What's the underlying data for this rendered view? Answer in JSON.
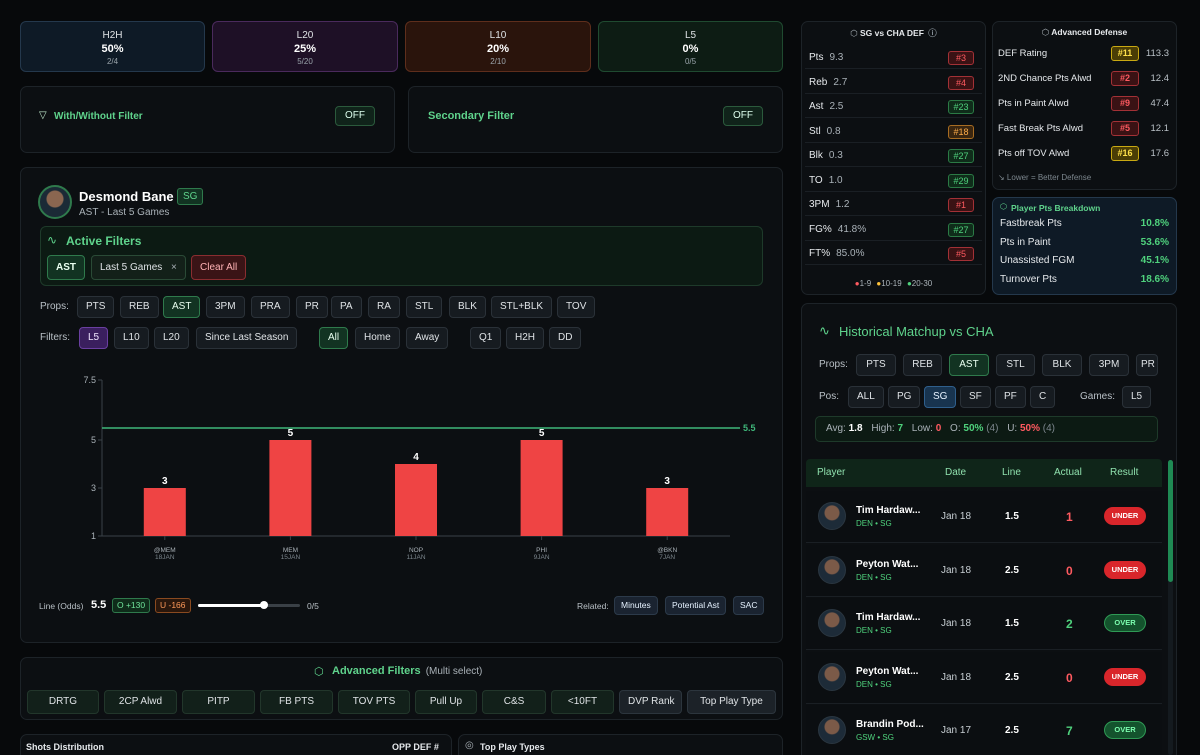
{
  "hit_cards": [
    {
      "title": "H2H",
      "pct": "50%",
      "frac": "2/4",
      "bg": "#0e1a26",
      "border": "#24384c"
    },
    {
      "title": "L20",
      "pct": "25%",
      "frac": "5/20",
      "bg": "#1e1026",
      "border": "#4a2a5c"
    },
    {
      "title": "L10",
      "pct": "20%",
      "frac": "2/10",
      "bg": "#2a140c",
      "border": "#5e2e1c"
    },
    {
      "title": "L5",
      "pct": "0%",
      "frac": "0/5",
      "bg": "#0d1c14",
      "border": "#1f4a30"
    }
  ],
  "filters_bar": {
    "with_without_label": "With/Without Filter",
    "with_without_state": "OFF",
    "secondary_label": "Secondary Filter",
    "secondary_state": "OFF"
  },
  "player": {
    "name": "Desmond Bane",
    "pos": "SG",
    "subtitle": "AST - Last 5 Games"
  },
  "active_filters": {
    "title": "Active Filters",
    "chips": [
      "AST",
      "Last 5 Games"
    ],
    "chip_close": "×",
    "clear": "Clear All"
  },
  "props": {
    "label": "Props:",
    "items": [
      "PTS",
      "REB",
      "AST",
      "3PM",
      "PRA",
      "PR",
      "PA",
      "RA",
      "STL",
      "BLK",
      "STL+BLK",
      "TOV"
    ]
  },
  "filters": {
    "label": "Filters:",
    "items": [
      "L5",
      "L10",
      "L20",
      "Since Last Season",
      "All",
      "Home",
      "Away",
      "Q1",
      "H2H",
      "DD"
    ]
  },
  "chart_data": {
    "type": "bar",
    "categories": [
      "@MEM",
      "MEM",
      "NOP",
      "PHI",
      "@BKN"
    ],
    "dates": [
      "18JAN",
      "15JAN",
      "11JAN",
      "9JAN",
      "7JAN"
    ],
    "values": [
      3,
      5,
      4,
      5,
      3
    ],
    "line": 5.5,
    "line_label": "5.5",
    "yticks": [
      "7.5",
      "5",
      "3",
      "1"
    ],
    "ytick_values": [
      7.5,
      5,
      3,
      1
    ],
    "ylim": [
      1,
      7.5
    ],
    "bar_color": "#ef4444",
    "line_color": "#3fb77a"
  },
  "line_controls": {
    "label": "Line (Odds)",
    "value": "5.5",
    "over": "O +130",
    "under": "U -166",
    "slider_fraction": 0.65,
    "count": "0/5",
    "related_label": "Related:",
    "related": [
      "Minutes",
      "Potential Ast",
      "SAC"
    ]
  },
  "advanced_filters": {
    "title": "Advanced Filters",
    "subtitle": "(Multi select)",
    "items": [
      "DRTG",
      "2CP Alwd",
      "PITP",
      "FB PTS",
      "TOV PTS",
      "Pull Up",
      "C&S",
      "<10FT",
      "DVP Rank",
      "Top Play Type"
    ]
  },
  "bottom": {
    "shots": "Shots Distribution",
    "opp_def": "OPP DEF #",
    "top_play": "Top Play Types"
  },
  "sg_def": {
    "title": "SG vs CHA DEF",
    "info_icon": "ⓘ",
    "rows": [
      {
        "k": "Pts",
        "v": "9.3",
        "rank": "#3",
        "c": "red"
      },
      {
        "k": "Reb",
        "v": "2.7",
        "rank": "#4",
        "c": "red"
      },
      {
        "k": "Ast",
        "v": "2.5",
        "rank": "#23",
        "c": "green"
      },
      {
        "k": "Stl",
        "v": "0.8",
        "rank": "#18",
        "c": "orange"
      },
      {
        "k": "Blk",
        "v": "0.3",
        "rank": "#27",
        "c": "green"
      },
      {
        "k": "TO",
        "v": "1.0",
        "rank": "#29",
        "c": "green"
      },
      {
        "k": "3PM",
        "v": "1.2",
        "rank": "#1",
        "c": "red"
      },
      {
        "k": "FG%",
        "v": "41.8%",
        "rank": "#27",
        "c": "green"
      },
      {
        "k": "FT%",
        "v": "85.0%",
        "rank": "#5",
        "c": "red"
      }
    ],
    "legend": [
      "1-9",
      "10-19",
      "20-30"
    ]
  },
  "adv_def": {
    "title": "Advanced Defense",
    "rows": [
      {
        "k": "DEF Rating",
        "rank": "#11",
        "v": "113.3",
        "c": "yellow"
      },
      {
        "k": "2ND Chance Pts Alwd",
        "rank": "#2",
        "v": "12.4",
        "c": "red"
      },
      {
        "k": "Pts in Paint Alwd",
        "rank": "#9",
        "v": "47.4",
        "c": "red"
      },
      {
        "k": "Fast Break Pts Alwd",
        "rank": "#5",
        "v": "12.1",
        "c": "red"
      },
      {
        "k": "Pts off TOV Alwd",
        "rank": "#16",
        "v": "17.6",
        "c": "yellow"
      }
    ],
    "note": "↘ Lower = Better Defense"
  },
  "pts_breakdown": {
    "title": "Player Pts Breakdown",
    "rows": [
      {
        "k": "Fastbreak Pts",
        "v": "10.8%"
      },
      {
        "k": "Pts in Paint",
        "v": "53.6%"
      },
      {
        "k": "Unassisted FGM",
        "v": "45.1%"
      },
      {
        "k": "Turnover Pts",
        "v": "18.6%"
      }
    ]
  },
  "historical": {
    "title": "Historical Matchup vs CHA",
    "props_label": "Props:",
    "props": [
      "PTS",
      "REB",
      "AST",
      "STL",
      "BLK",
      "3PM",
      "PR"
    ],
    "pos_label": "Pos:",
    "pos": [
      "ALL",
      "PG",
      "SG",
      "SF",
      "PF",
      "C"
    ],
    "games_label": "Games:",
    "games": [
      "L5"
    ],
    "stats": {
      "avg_label": "Avg:",
      "avg": "1.8",
      "high_label": "High:",
      "high": "7",
      "low_label": "Low:",
      "low": "0",
      "o_label": "O:",
      "o": "50%",
      "o_n": "(4)",
      "u_label": "U:",
      "u": "50%",
      "u_n": "(4)"
    },
    "columns": [
      "Player",
      "Date",
      "Line",
      "Actual",
      "Result"
    ],
    "rows": [
      {
        "name": "Tim Hardaw...",
        "team": "DEN • SG",
        "date": "Jan 18",
        "line": "1.5",
        "actual": "1",
        "result": "UNDER"
      },
      {
        "name": "Peyton Wat...",
        "team": "DEN • SG",
        "date": "Jan 18",
        "line": "2.5",
        "actual": "0",
        "result": "UNDER"
      },
      {
        "name": "Tim Hardaw...",
        "team": "DEN • SG",
        "date": "Jan 18",
        "line": "1.5",
        "actual": "2",
        "result": "OVER"
      },
      {
        "name": "Peyton Wat...",
        "team": "DEN • SG",
        "date": "Jan 18",
        "line": "2.5",
        "actual": "0",
        "result": "UNDER"
      },
      {
        "name": "Brandin Pod...",
        "team": "GSW • SG",
        "date": "Jan 17",
        "line": "2.5",
        "actual": "7",
        "result": "OVER"
      }
    ]
  }
}
